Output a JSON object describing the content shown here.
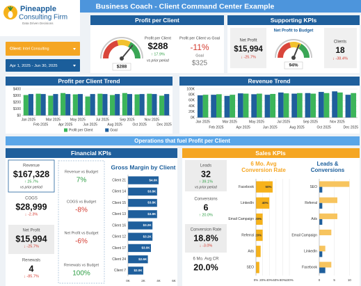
{
  "header": {
    "title": "Business Coach - Client Command Center Example"
  },
  "brand": {
    "name": "Pineapple",
    "subname": "Consulting Firm",
    "tagline": "Data Driven Decisions"
  },
  "filters": {
    "client_label": "Client:",
    "client": "Intel Consulting",
    "date_range": "Apr 1, 2025 - Jun 30, 2025"
  },
  "profit_panel": {
    "title": "Profit per Client",
    "kpi_label": "Profit per Client",
    "kpi_value": "$288",
    "kpi_change": "↑ 17.9%",
    "kpi_note": "vs prior period",
    "goal_compare_label": "Profit per Client vs Goal",
    "goal_compare_value": "-11%",
    "goal_label": "Goal",
    "goal_value": "$325"
  },
  "supporting_kpis": {
    "title": "Supporting KPIs",
    "net_profit_label": "Net Profit",
    "net_profit_value": "$15,994",
    "net_profit_change": "↓ -25.7%",
    "clients_label": "Clients",
    "clients_value": "18",
    "clients_change": "↓ -38.4%"
  },
  "banner": "Operations that fuel Profit per Client",
  "financial_kpis": {
    "title": "Financial KPIs",
    "cards": [
      {
        "label": "Revenue",
        "value": "$167,328",
        "change": "↑ 25.7%",
        "note": "vs prior period"
      },
      {
        "label": "COGS",
        "value": "$28,999",
        "change": "↓ -2.3%"
      },
      {
        "label": "Net Profit",
        "value": "$15,994",
        "change": "↓ -25.7%"
      },
      {
        "label": "Renewals",
        "value": "4",
        "change": "↓ -85.7%"
      }
    ],
    "budget": [
      {
        "label": "Revenue vs Budget",
        "value": "7%"
      },
      {
        "label": "COGS vs Budget",
        "value": "-8%"
      },
      {
        "label": "Net Profit vs Budget",
        "value": "-6%"
      },
      {
        "label": "Renewals vs Budget",
        "value": "100%"
      }
    ]
  },
  "sales_kpis": {
    "title": "Sales KPIs",
    "cards": [
      {
        "label": "Leads",
        "value": "32",
        "change": "↑ 39.1%",
        "note": "vs prior period"
      },
      {
        "label": "Conversions",
        "value": "6",
        "change": "↑ 20.0%"
      },
      {
        "label": "Conversion Rate",
        "value": "18.8%",
        "change": "↓ -3.0%"
      },
      {
        "label": "6 Mo. Avg CR",
        "value": "20.0%"
      }
    ]
  },
  "chart_data": [
    {
      "type": "bar",
      "title": "Profit per Client Trend",
      "categories": [
        "Jan 2025",
        "Feb 2025",
        "Mar 2025",
        "Apr 2025",
        "May 2025",
        "Jun 2025",
        "Jul 2025",
        "Aug 2025",
        "Sep 2025",
        "Oct 2025",
        "Nov 2025",
        "Dec 2025"
      ],
      "series": [
        {
          "name": "Profit per Client",
          "color": "#3cb55a",
          "values": [
            310,
            330,
            300,
            340,
            320,
            288,
            330,
            310,
            340,
            320,
            330,
            300
          ]
        },
        {
          "name": "Goal",
          "color": "#1f5f9c",
          "values": [
            325,
            325,
            325,
            325,
            325,
            325,
            325,
            325,
            325,
            325,
            325,
            325
          ]
        }
      ],
      "ylim": [
        0,
        400
      ],
      "yticks": [
        {
          "value": 0,
          "label": "$0"
        },
        {
          "value": 100,
          "label": "$100"
        },
        {
          "value": 200,
          "label": "$200"
        },
        {
          "value": 300,
          "label": "$300"
        },
        {
          "value": 400,
          "label": "$400"
        }
      ],
      "grid": true
    },
    {
      "type": "bar",
      "title": "Revenue Trend",
      "categories": [
        "Jan 2025",
        "Feb 2025",
        "Mar 2025",
        "Apr 2025",
        "May 2025",
        "Jun 2025",
        "Jul 2025",
        "Aug 2025",
        "Sep 2025",
        "Oct 2025",
        "Nov 2025",
        "Dec 2025"
      ],
      "series": [
        {
          "color": "#1f5f9c",
          "values": [
            78,
            80,
            76,
            85,
            82,
            80,
            88,
            84,
            86,
            90,
            92,
            80
          ]
        },
        {
          "color": "#3cb55a",
          "values": [
            80,
            82,
            80,
            84,
            84,
            83,
            85,
            86,
            84,
            86,
            88,
            86
          ]
        }
      ],
      "ylim": [
        0,
        100
      ],
      "yticks": [
        {
          "value": 0,
          "label": "0K"
        },
        {
          "value": 20,
          "label": "20K"
        },
        {
          "value": 40,
          "label": "40K"
        },
        {
          "value": 60,
          "label": "60K"
        },
        {
          "value": 80,
          "label": "80K"
        },
        {
          "value": 100,
          "label": "100K"
        }
      ],
      "grid": true
    },
    {
      "type": "bar",
      "orientation": "horizontal",
      "title": "Gross Margin by Client",
      "categories": [
        "Client 21",
        "Client 14",
        "Client 15",
        "Client 13",
        "Client 16",
        "Client 12",
        "Client 17",
        "Client 24",
        "Client 7"
      ],
      "series": [
        {
          "color": "#1f5f9c",
          "values": [
            4.0,
            3.8,
            3.8,
            3.8,
            3.2,
            3.2,
            3.0,
            2.6,
            2.0
          ],
          "value_labels": [
            "$4.0K",
            "$3.8K",
            "$3.8K",
            "$3.8K",
            "$3.2K",
            "$3.2K",
            "$3.0K",
            "$2.6K",
            "$2.0K"
          ]
        }
      ],
      "xlim": [
        0,
        6
      ],
      "xticks": [
        {
          "value": 0,
          "label": "0K"
        },
        {
          "value": 2,
          "label": "2K"
        },
        {
          "value": 4,
          "label": "4K"
        },
        {
          "value": 6,
          "label": "6K"
        }
      ],
      "grid": false
    },
    {
      "type": "bar",
      "orientation": "horizontal",
      "title": "6 Mo. Avg Conversion Rate",
      "categories": [
        "Facebook",
        "LinkedIn",
        "Email Campaign",
        "Referral",
        "Ads",
        "SEO"
      ],
      "series": [
        {
          "color": "#f6b21b",
          "values": [
            50,
            40,
            20,
            20,
            14,
            10
          ],
          "value_labels": [
            "50%",
            "40%",
            "20%",
            "20%",
            null,
            null
          ]
        }
      ],
      "xlim": [
        0,
        100
      ],
      "xticks": [
        {
          "value": 0,
          "label": "0%"
        },
        {
          "value": 20,
          "label": "20%"
        },
        {
          "value": 40,
          "label": "40%"
        },
        {
          "value": 60,
          "label": "60%"
        },
        {
          "value": 80,
          "label": "80%"
        },
        {
          "value": 100,
          "label": "100%"
        }
      ],
      "grid": true
    },
    {
      "type": "bar",
      "orientation": "horizontal",
      "title": "Leads & Conversions",
      "categories": [
        "SEO",
        "Referral",
        "Ads",
        "Email Campaign",
        "LinkedIn",
        "Facebook"
      ],
      "series": [
        {
          "color": "#f7c45e",
          "values": [
            10,
            6,
            6,
            4,
            2,
            4
          ]
        },
        {
          "color": "#1f5f9c",
          "values": [
            1,
            1,
            1,
            0,
            1,
            2
          ]
        }
      ],
      "xlim": [
        0,
        12
      ],
      "xticks": [
        0,
        5,
        10
      ],
      "grid": true
    },
    {
      "type": "gauge",
      "value": 288,
      "value_label": "$288",
      "ylim": [
        0,
        400
      ]
    },
    {
      "type": "gauge",
      "title": "Net Profit to Budget",
      "value": 94,
      "value_label": "94%",
      "ylim": [
        0,
        150
      ]
    }
  ]
}
